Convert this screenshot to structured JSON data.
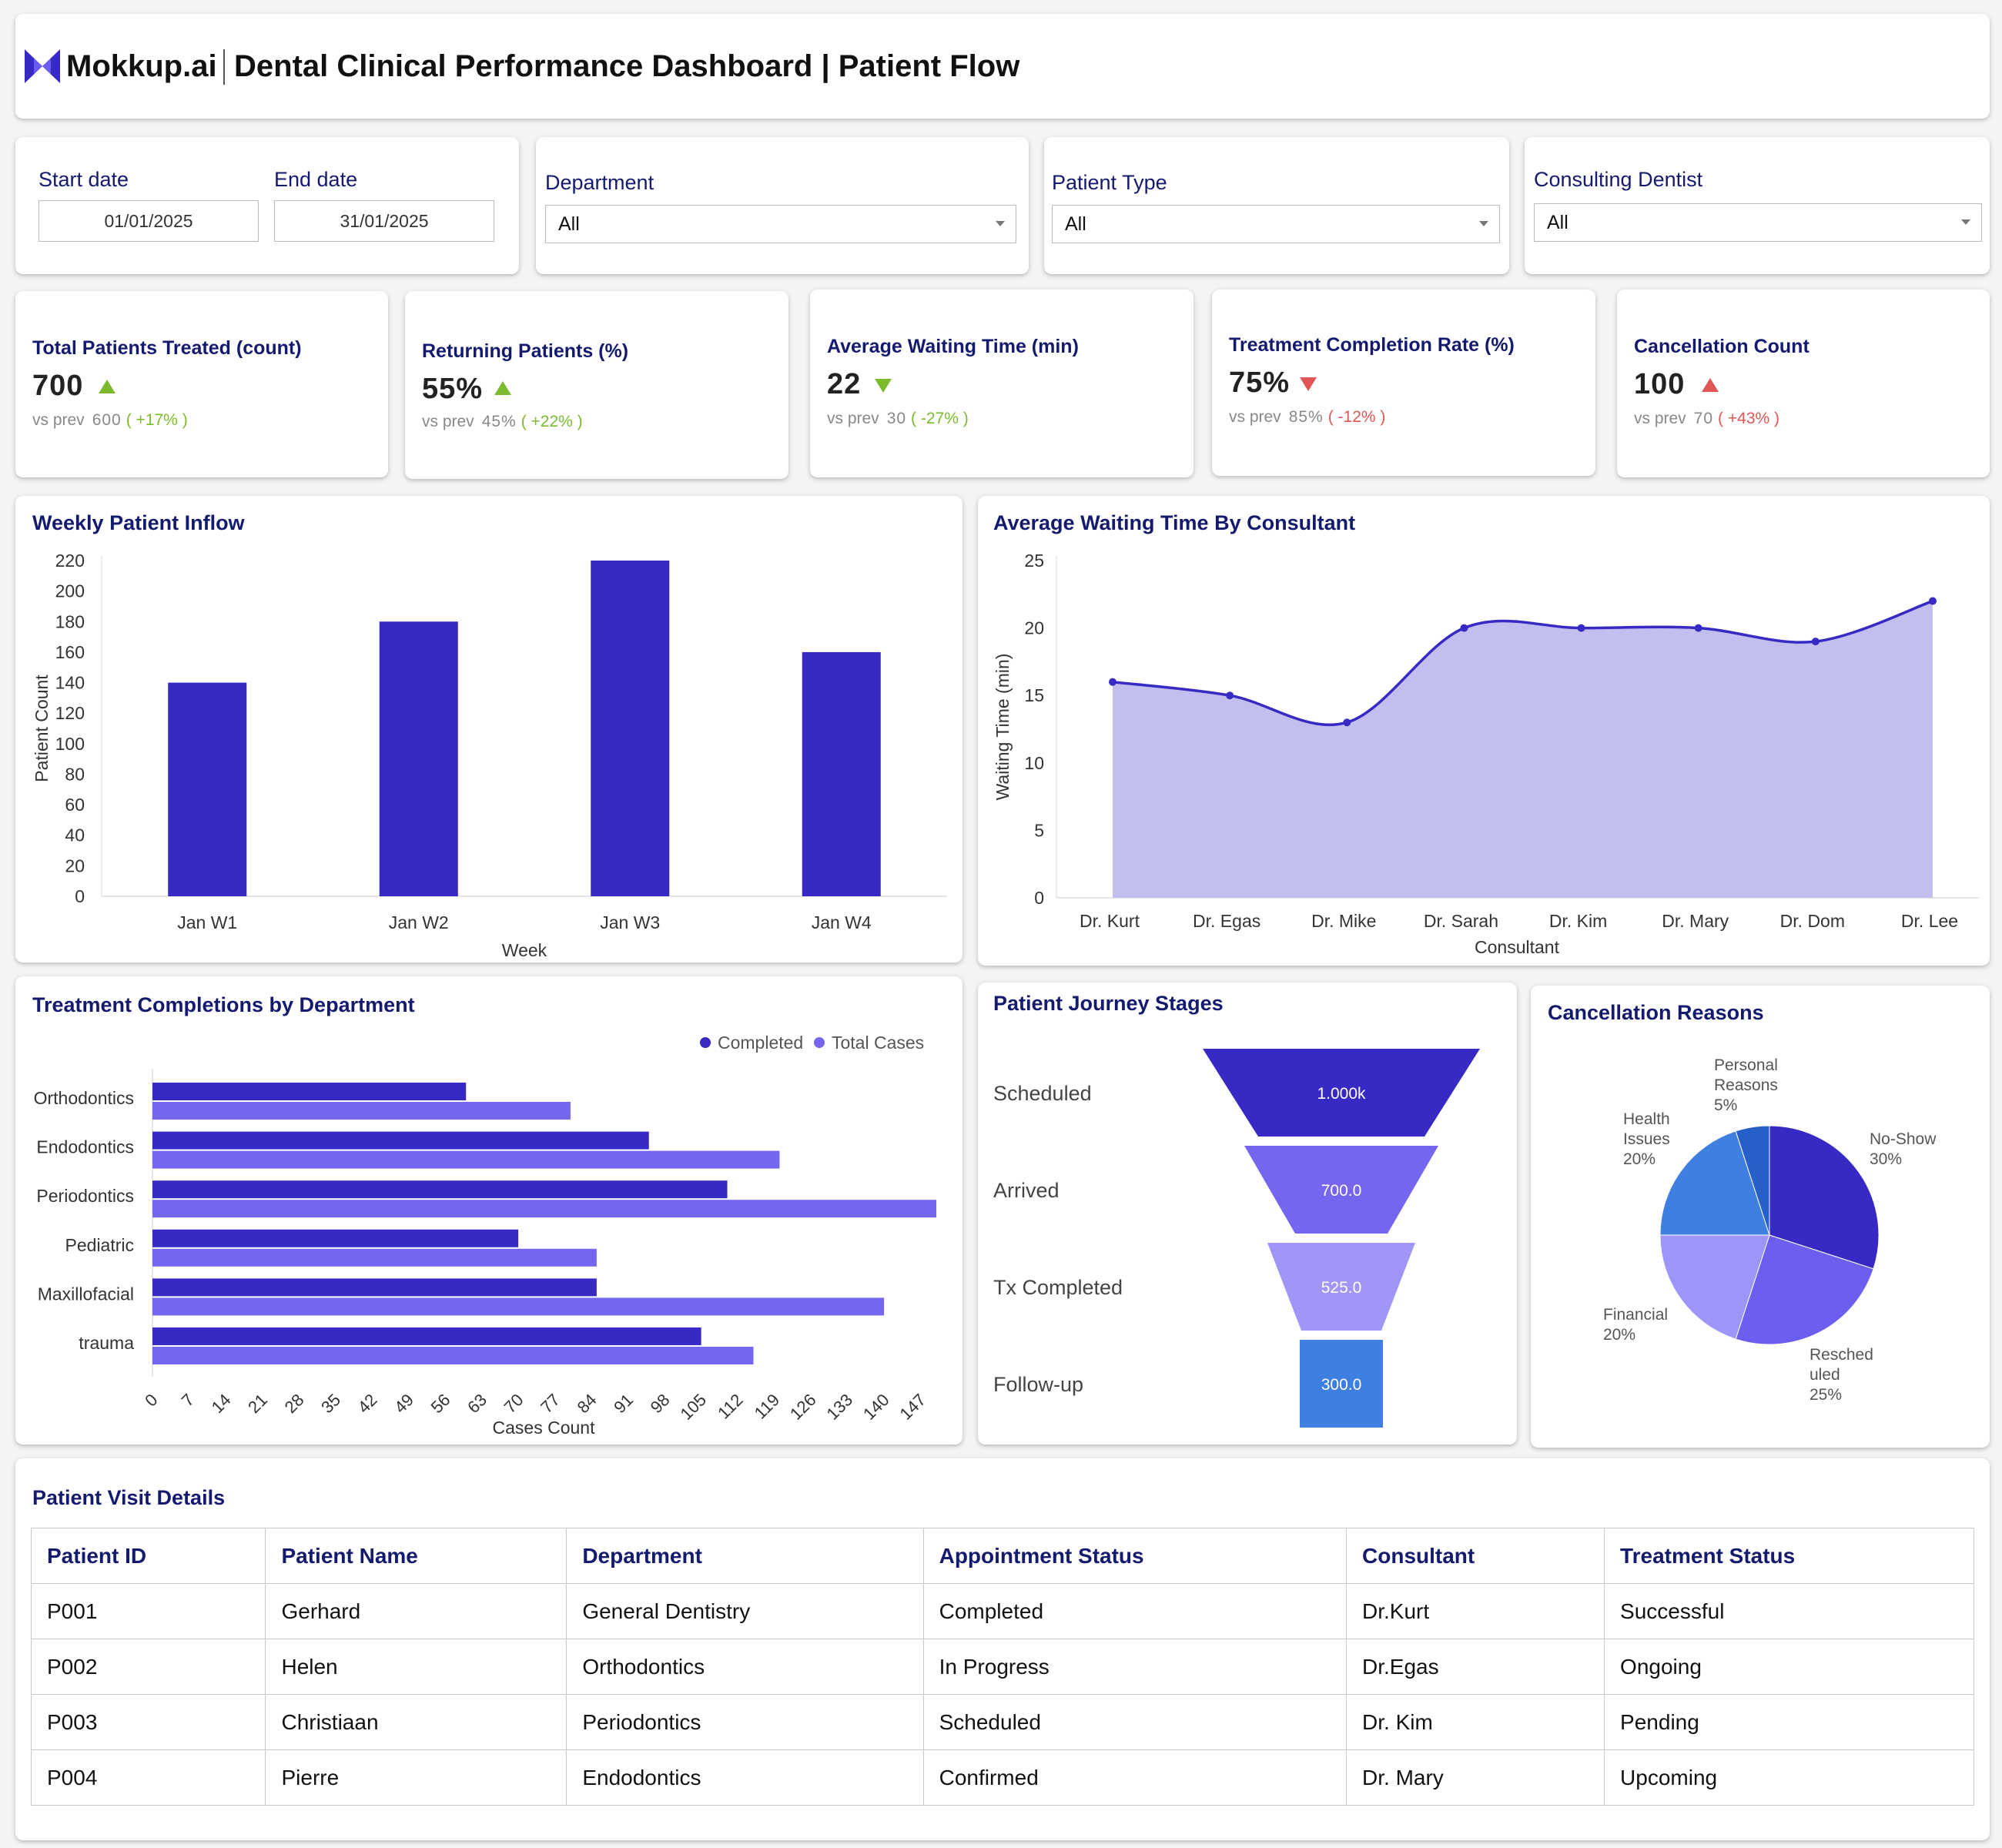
{
  "header": {
    "logo_text": "Mokkup.ai",
    "title": "Dental Clinical Performance Dashboard | Patient Flow"
  },
  "filters": {
    "start_label": "Start date",
    "start_value": "01/01/2025",
    "end_label": "End date",
    "end_value": "31/01/2025",
    "department_label": "Department",
    "department_value": "All",
    "patient_type_label": "Patient Type",
    "patient_type_value": "All",
    "dentist_label": "Consulting Dentist",
    "dentist_value": "All"
  },
  "kpis": [
    {
      "label": "Total Patients Treated (count)",
      "value": "700",
      "prev_label": "vs prev",
      "prev": "600",
      "change": "( +17% )",
      "direction": "up",
      "sentiment": "good"
    },
    {
      "label": "Returning Patients (%)",
      "value": "55%",
      "prev_label": "vs prev",
      "prev": "45%",
      "change": "( +22% )",
      "direction": "up",
      "sentiment": "good"
    },
    {
      "label": "Average Waiting Time (min)",
      "value": "22",
      "prev_label": "vs prev",
      "prev": "30",
      "change": "( -27% )",
      "direction": "down",
      "sentiment": "good"
    },
    {
      "label": "Treatment Completion Rate (%)",
      "value": "75%",
      "prev_label": "vs prev",
      "prev": "85%",
      "change": "( -12% )",
      "direction": "down",
      "sentiment": "bad"
    },
    {
      "label": "Cancellation Count",
      "value": "100",
      "prev_label": "vs prev",
      "prev": "70",
      "change": "( +43% )",
      "direction": "up",
      "sentiment": "bad"
    }
  ],
  "colors": {
    "primary": "#3629c4",
    "secondary": "#7566f0",
    "light": "#9f96f7",
    "blue": "#3e7fe0",
    "area_fill": "#c2bff0",
    "good": "#7cbb2e",
    "bad": "#e05656",
    "title": "#141a6e"
  },
  "chart_data": [
    {
      "type": "bar",
      "title": "Weekly Patient Inflow",
      "xlabel": "Week",
      "ylabel": "Patient Count",
      "categories": [
        "Jan W1",
        "Jan W2",
        "Jan W3",
        "Jan W4"
      ],
      "values": [
        140,
        180,
        220,
        160
      ],
      "ylim": [
        0,
        220
      ],
      "yticks": [
        "0",
        "20",
        "40",
        "60",
        "80",
        "100",
        "120",
        "140",
        "160",
        "180",
        "200",
        "220"
      ]
    },
    {
      "type": "area",
      "title": "Average Waiting Time By Consultant",
      "xlabel": "Consultant",
      "ylabel": "Waiting Time (min)",
      "categories": [
        "Dr. Kurt",
        "Dr. Egas",
        "Dr. Mike",
        "Dr. Sarah",
        "Dr. Kim",
        "Dr. Mary",
        "Dr. Dom",
        "Dr. Lee"
      ],
      "values": [
        16,
        15,
        13,
        20,
        20,
        20,
        19,
        22
      ],
      "ylim": [
        0,
        25
      ],
      "yticks": [
        "0",
        "5",
        "10",
        "15",
        "20",
        "25"
      ]
    },
    {
      "type": "bar",
      "orientation": "horizontal",
      "title": "Treatment Completions by Department",
      "xlabel": "Cases Count",
      "categories": [
        "Orthodontics",
        "Endodontics",
        "Periodontics",
        "Pediatric",
        "Maxillofacial",
        "trauma"
      ],
      "series": [
        {
          "name": "Completed",
          "values": [
            60,
            95,
            110,
            70,
            85,
            105
          ]
        },
        {
          "name": "Total Cases",
          "values": [
            80,
            120,
            150,
            85,
            140,
            115
          ]
        }
      ],
      "xlim": [
        0,
        150
      ],
      "xticks": [
        "0",
        "7",
        "14",
        "21",
        "28",
        "35",
        "42",
        "49",
        "56",
        "63",
        "70",
        "77",
        "84",
        "91",
        "98",
        "105",
        "112",
        "119",
        "126",
        "133",
        "140",
        "147"
      ]
    },
    {
      "type": "funnel",
      "title": "Patient Journey Stages",
      "categories": [
        "Scheduled",
        "Arrived",
        "Tx Completed",
        "Follow-up"
      ],
      "values": [
        1000,
        700,
        525,
        300
      ],
      "value_labels": [
        "1.000k",
        "700.0",
        "525.0",
        "300.0"
      ]
    },
    {
      "type": "pie",
      "title": "Cancellation Reasons",
      "slices": [
        {
          "name": "No-Show",
          "value": 30,
          "pct": "30%"
        },
        {
          "name": "Rescheduled",
          "value": 25,
          "pct": "25%"
        },
        {
          "name": "Financial",
          "value": 20,
          "pct": "20%"
        },
        {
          "name": "Health Issues",
          "value": 20,
          "pct": "20%"
        },
        {
          "name": "Personal Reasons",
          "value": 5,
          "pct": "5%"
        }
      ]
    }
  ],
  "table": {
    "title": "Patient Visit Details",
    "columns": [
      "Patient ID",
      "Patient Name",
      "Department",
      "Appointment Status",
      "Consultant",
      "Treatment Status"
    ],
    "rows": [
      [
        "P001",
        "Gerhard",
        "General Dentistry",
        "Completed",
        "Dr.Kurt",
        "Successful"
      ],
      [
        "P002",
        "Helen",
        "Orthodontics",
        "In Progress",
        "Dr.Egas",
        "Ongoing"
      ],
      [
        "P003",
        "Christiaan",
        "Periodontics",
        "Scheduled",
        "Dr. Kim",
        "Pending"
      ],
      [
        "P004",
        "Pierre",
        "Endodontics",
        "Confirmed",
        "Dr. Mary",
        "Upcoming"
      ]
    ]
  }
}
